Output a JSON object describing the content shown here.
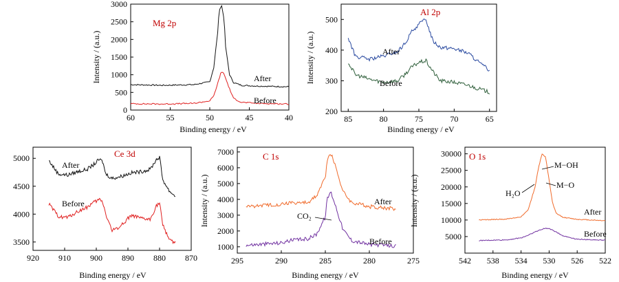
{
  "panels": [
    {
      "id": "mg",
      "title": "Mg 2p",
      "xlabel": "Binding energy / eV",
      "ylabel": "Intensity / (a.u.)",
      "xlim": [
        60,
        40
      ],
      "ylim": [
        0,
        3000
      ],
      "xticks": [
        "60",
        "55",
        "50",
        "45",
        "40"
      ],
      "yticks": [
        "0",
        "500",
        "1000",
        "1500",
        "2000",
        "2500",
        "3000"
      ],
      "annotations": [
        "After",
        "Before"
      ]
    },
    {
      "id": "al",
      "title": "Al 2p",
      "xlabel": "Binding energy / eV",
      "ylabel": "Intensity / (a.u.)",
      "xlim": [
        86,
        64
      ],
      "ylim": [
        200,
        550
      ],
      "xticks": [
        "85",
        "80",
        "75",
        "70",
        "65"
      ],
      "yticks": [
        "200",
        "300",
        "400",
        "500"
      ],
      "annotations": [
        "After",
        "Before"
      ]
    },
    {
      "id": "ce",
      "title": "Ce 3d",
      "xlabel": "Binding energy / eV",
      "ylabel": "Intensity / (a.u.)",
      "xlim": [
        920,
        870
      ],
      "ylim": [
        3350,
        5200
      ],
      "xticks": [
        "920",
        "910",
        "900",
        "890",
        "880",
        "870"
      ],
      "yticks": [
        "3500",
        "4000",
        "4500",
        "5000"
      ],
      "annotations": [
        "After",
        "Before"
      ]
    },
    {
      "id": "c",
      "title": "C 1s",
      "xlabel": "Binding energy / eV",
      "ylabel": "Intensity / (a.u.)",
      "xlim": [
        295,
        275
      ],
      "ylim": [
        600,
        7300
      ],
      "xticks": [
        "295",
        "290",
        "285",
        "280",
        "275"
      ],
      "yticks": [
        "1000",
        "2000",
        "3000",
        "4000",
        "5000",
        "6000",
        "7000"
      ],
      "annotations": [
        "After",
        "Before",
        "CO₂"
      ]
    },
    {
      "id": "o",
      "title": "O 1s",
      "xlabel": "Binding energy / eV",
      "ylabel": "Intensity / (a.u.)",
      "xlim": [
        542,
        522
      ],
      "ylim": [
        0,
        32000
      ],
      "xticks": [
        "542",
        "538",
        "534",
        "530",
        "526",
        "522"
      ],
      "yticks": [
        "5000",
        "10000",
        "15000",
        "20000",
        "25000",
        "30000"
      ],
      "annotations": [
        "After",
        "Before",
        "M−OH",
        "M−O",
        "H₂O"
      ]
    }
  ],
  "colors": {
    "black": "#111111",
    "red": "#e02020",
    "blue": "#2a4aa0",
    "green": "#2e5e3a",
    "orange": "#f06a2a",
    "purple": "#7030a0",
    "title_red": "#c00000"
  },
  "chart_data": [
    {
      "type": "line",
      "title": "Mg 2p",
      "xlabel": "Binding energy / eV",
      "ylabel": "Intensity / (a.u.)",
      "xlim": [
        60,
        40
      ],
      "ylim": [
        0,
        3000
      ],
      "series": [
        {
          "name": "After",
          "x": [
            60,
            56,
            52,
            50,
            49.5,
            49,
            48.8,
            48.5,
            48.2,
            48,
            47.5,
            47,
            46,
            44,
            40
          ],
          "y": [
            720,
            700,
            720,
            800,
            1200,
            2200,
            2850,
            2950,
            2600,
            1800,
            1000,
            780,
            700,
            680,
            660
          ]
        },
        {
          "name": "Before",
          "x": [
            60,
            56,
            52,
            50,
            49.5,
            49,
            48.6,
            48.3,
            48,
            47.5,
            47,
            46,
            44,
            40
          ],
          "y": [
            180,
            170,
            190,
            260,
            400,
            750,
            1050,
            1080,
            900,
            600,
            330,
            220,
            190,
            170
          ]
        }
      ]
    },
    {
      "type": "line",
      "title": "Al 2p",
      "xlabel": "Binding energy / eV",
      "ylabel": "Intensity / (a.u.)",
      "xlim": [
        86,
        64
      ],
      "ylim": [
        200,
        550
      ],
      "series": [
        {
          "name": "After",
          "x": [
            85,
            84,
            82,
            80,
            78,
            77,
            76,
            75,
            74,
            73,
            72,
            70,
            68,
            66,
            65
          ],
          "y": [
            440,
            380,
            370,
            380,
            395,
            420,
            460,
            485,
            500,
            430,
            410,
            405,
            390,
            350,
            335
          ]
        },
        {
          "name": "Before",
          "x": [
            85,
            84,
            82,
            80,
            78,
            77,
            76,
            75,
            74,
            73,
            72,
            70,
            68,
            66,
            65
          ],
          "y": [
            360,
            320,
            305,
            295,
            300,
            320,
            345,
            360,
            365,
            330,
            300,
            295,
            285,
            270,
            262
          ]
        }
      ]
    },
    {
      "type": "line",
      "title": "Ce 3d",
      "xlabel": "Binding energy / eV",
      "ylabel": "Intensity / (a.u.)",
      "xlim": [
        920,
        870
      ],
      "ylim": [
        3350,
        5200
      ],
      "series": [
        {
          "name": "After",
          "x": [
            915,
            912,
            909,
            906,
            903,
            901,
            899,
            898,
            897,
            895,
            892,
            889,
            886,
            883,
            881,
            880,
            879,
            877,
            875
          ],
          "y": [
            4960,
            4720,
            4700,
            4760,
            4800,
            4880,
            4980,
            4940,
            4720,
            4640,
            4680,
            4740,
            4760,
            4800,
            4980,
            5020,
            4620,
            4420,
            4320
          ]
        },
        {
          "name": "Before",
          "x": [
            915,
            912,
            909,
            906,
            903,
            901,
            899,
            898,
            897,
            895,
            892,
            889,
            886,
            883,
            881,
            880,
            879,
            877,
            875
          ],
          "y": [
            4180,
            3960,
            3940,
            4040,
            4120,
            4200,
            4260,
            4220,
            4000,
            3700,
            3800,
            3980,
            3920,
            3900,
            4150,
            4200,
            3800,
            3560,
            3480
          ]
        }
      ]
    },
    {
      "type": "line",
      "title": "C 1s",
      "xlabel": "Binding energy / eV",
      "ylabel": "Intensity / (a.u.)",
      "xlim": [
        295,
        275
      ],
      "ylim": [
        600,
        7300
      ],
      "series": [
        {
          "name": "After",
          "x": [
            294,
            290,
            289,
            288,
            287,
            286,
            285,
            284.8,
            284.4,
            284,
            283,
            282,
            280,
            277
          ],
          "y": [
            3550,
            3700,
            3800,
            3780,
            3800,
            4200,
            5400,
            6500,
            6900,
            6400,
            4500,
            3800,
            3550,
            3400
          ]
        },
        {
          "name": "Before",
          "x": [
            294,
            290,
            289,
            288,
            287,
            286,
            285,
            284.8,
            284.4,
            284,
            283,
            282,
            280,
            277
          ],
          "y": [
            1100,
            1250,
            1400,
            1450,
            1500,
            1800,
            2900,
            4000,
            4500,
            3900,
            2100,
            1400,
            1150,
            1050
          ]
        }
      ]
    },
    {
      "type": "line",
      "title": "O 1s",
      "xlabel": "Binding energy / eV",
      "ylabel": "Intensity / (a.u.)",
      "xlim": [
        542,
        522
      ],
      "ylim": [
        0,
        32000
      ],
      "series": [
        {
          "name": "After",
          "x": [
            540,
            536,
            534,
            533,
            532,
            531.5,
            531,
            530.5,
            530,
            529.5,
            529,
            528,
            526,
            522
          ],
          "y": [
            10000,
            10300,
            11000,
            13000,
            20000,
            26000,
            30000,
            29000,
            22000,
            15000,
            12000,
            10800,
            10200,
            9800
          ]
        },
        {
          "name": "Before",
          "x": [
            540,
            536,
            534,
            533,
            532,
            531,
            530.5,
            530,
            529.5,
            529,
            528,
            526,
            522
          ],
          "y": [
            3800,
            4000,
            4600,
            5400,
            6400,
            7200,
            7500,
            7400,
            7000,
            6400,
            5200,
            4200,
            3900
          ]
        }
      ]
    }
  ]
}
